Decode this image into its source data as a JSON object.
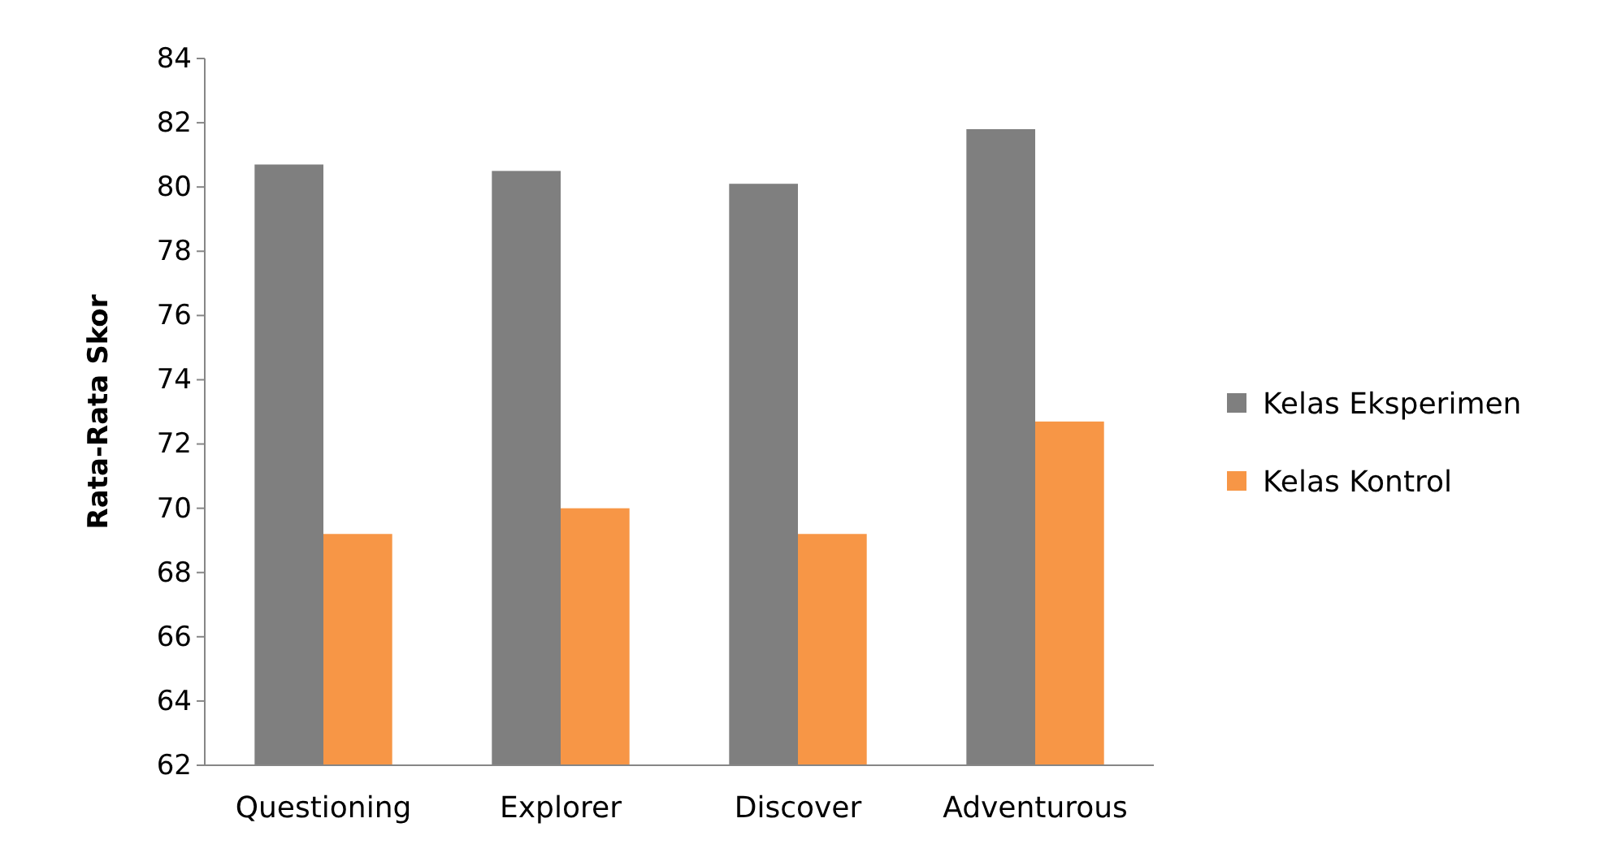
{
  "chart_data": {
    "type": "bar",
    "ylabel": "Rata-Rata Skor",
    "categories": [
      "Questioning",
      "Explorer",
      "Discover",
      "Adventurous"
    ],
    "series": [
      {
        "name": "Kelas Eksperimen",
        "color": "#7f7f7f",
        "values": [
          80.7,
          80.5,
          80.1,
          81.8
        ]
      },
      {
        "name": "Kelas Kontrol",
        "color": "#f79646",
        "values": [
          69.2,
          70.0,
          69.2,
          72.7
        ]
      }
    ],
    "ylim": [
      62,
      84
    ],
    "yticks": [
      62,
      64,
      66,
      68,
      70,
      72,
      74,
      76,
      78,
      80,
      82,
      84
    ],
    "grid": false,
    "legend": "right"
  }
}
